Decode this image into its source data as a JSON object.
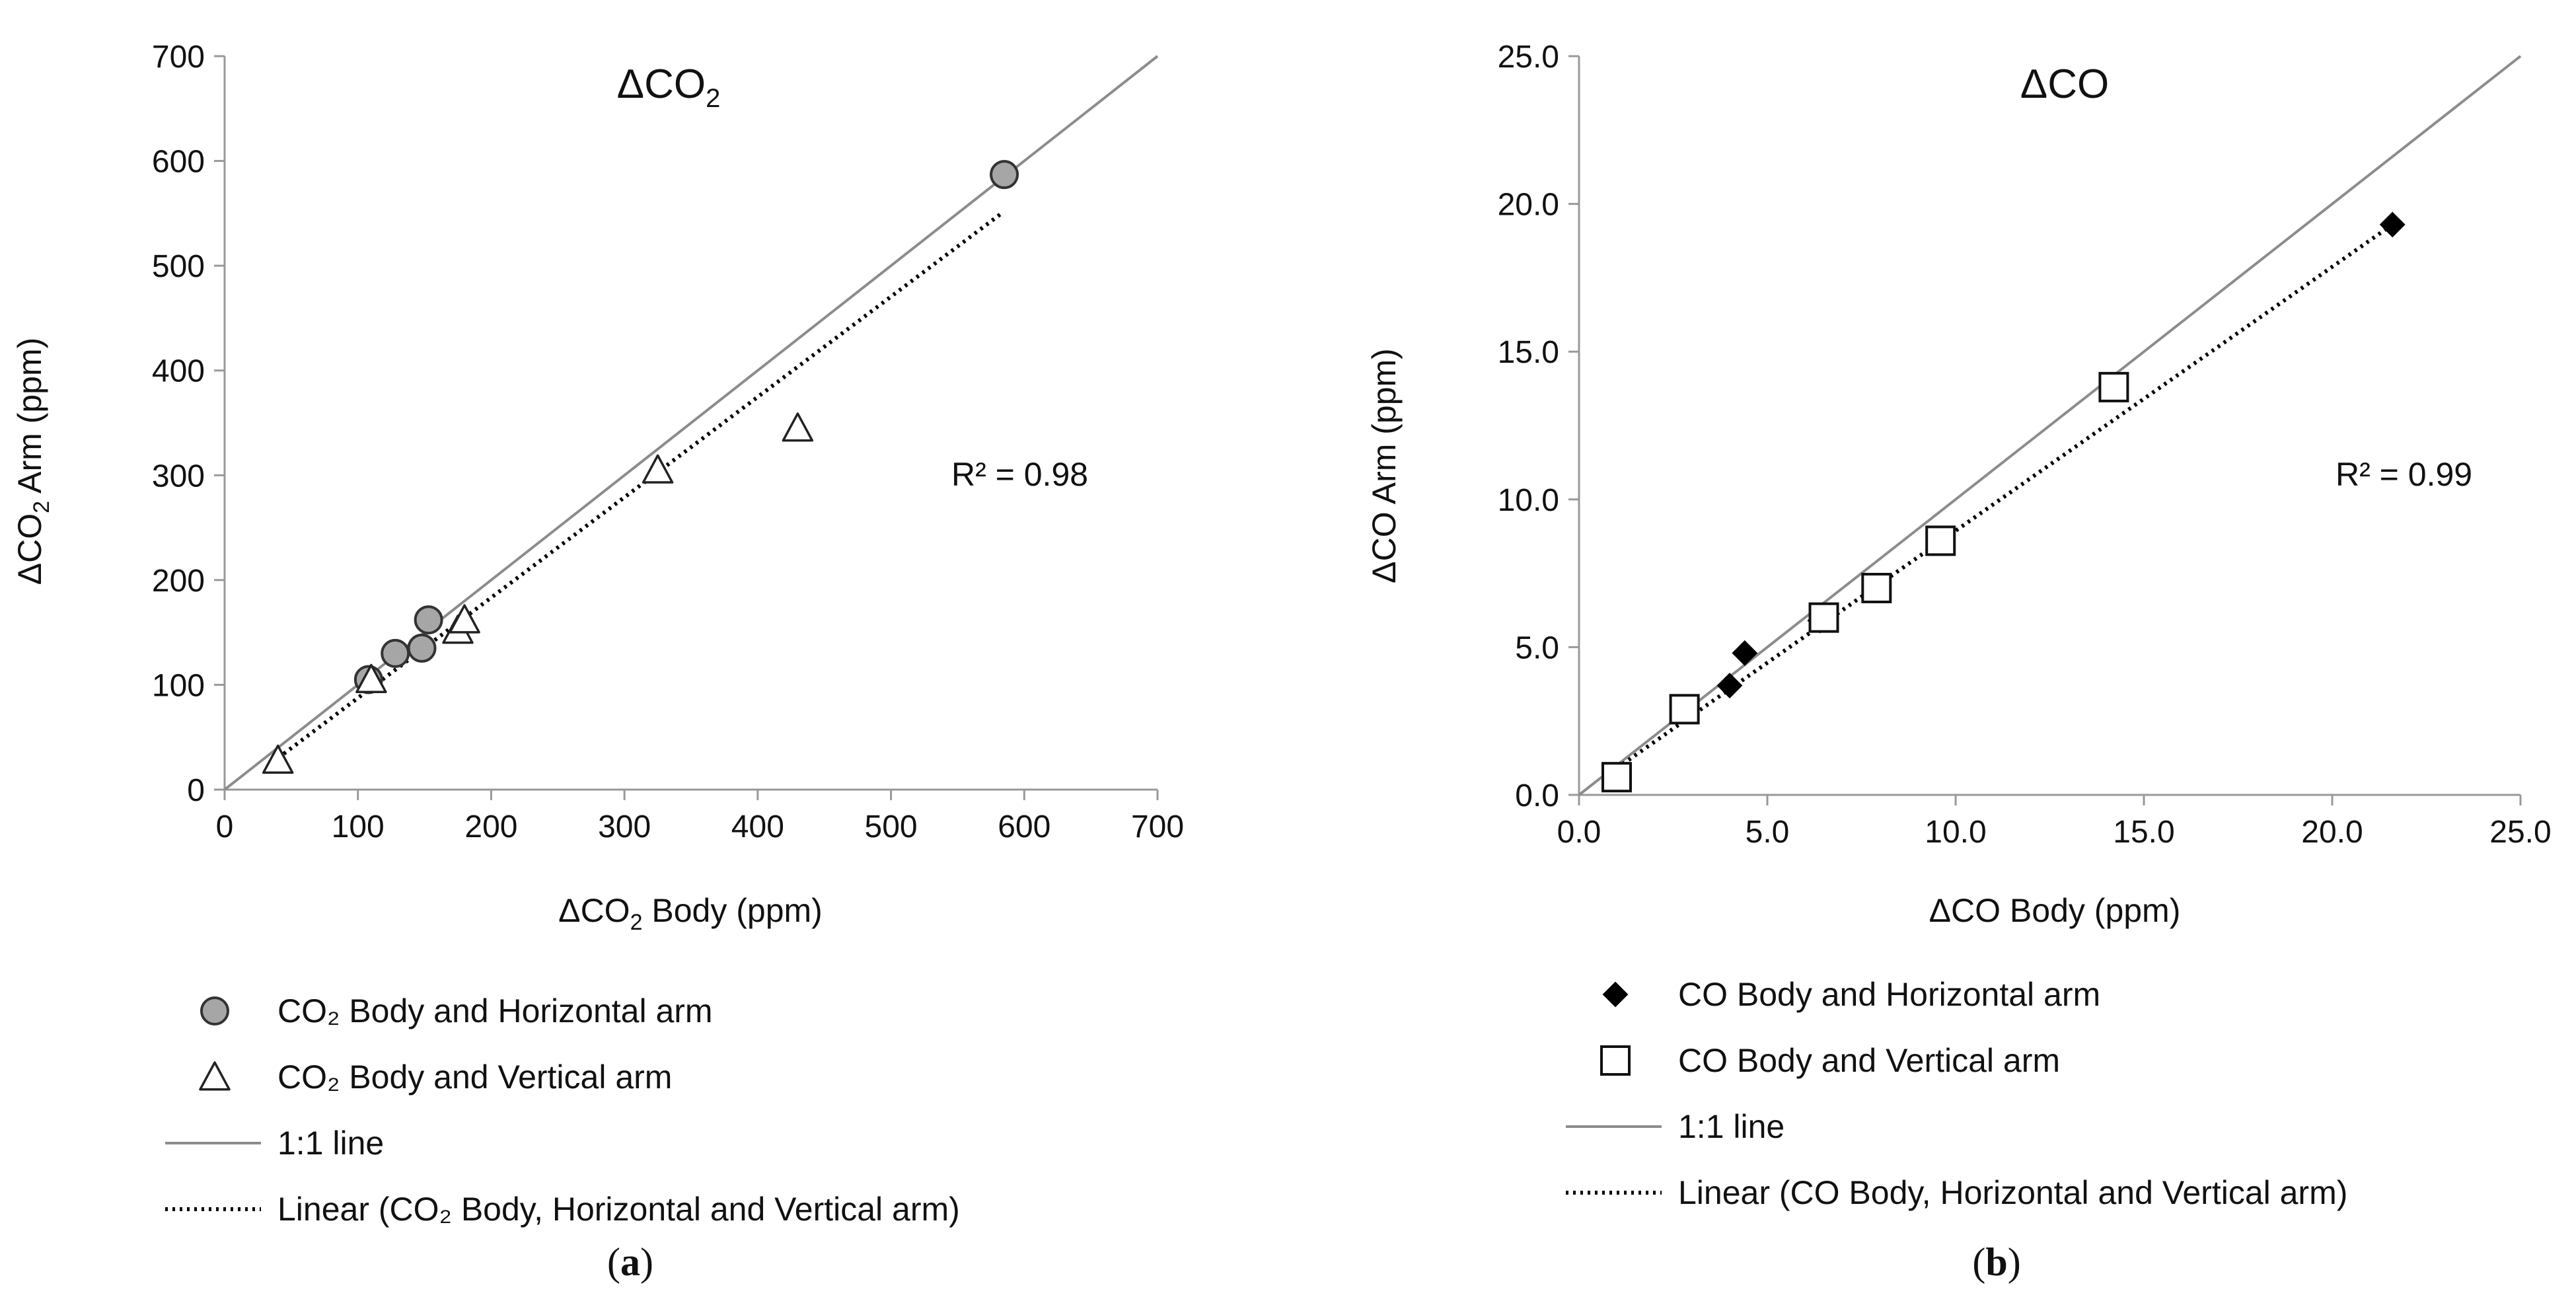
{
  "chart_data": [
    {
      "type": "scatter",
      "panel_label": "a",
      "title": "ΔCO",
      "title_subscript": "2",
      "xlabel": "ΔCO",
      "xlabel_subscript": "2",
      "xlabel_rest": " Body (ppm)",
      "ylabel": "ΔCO",
      "ylabel_subscript": "2",
      "ylabel_rest": " Arm (ppm)",
      "xlim": [
        0,
        700
      ],
      "ylim": [
        0,
        700
      ],
      "xticks": [
        "0",
        "100",
        "200",
        "300",
        "400",
        "500",
        "600",
        "700"
      ],
      "yticks": [
        "0",
        "100",
        "200",
        "300",
        "400",
        "500",
        "600",
        "700"
      ],
      "annotation": "R² = 0.98",
      "series": [
        {
          "name": "CO₂ Body and Horizontal arm",
          "marker": "circle",
          "color": "#a6a6a6",
          "points": [
            [
              108,
              105
            ],
            [
              128,
              130
            ],
            [
              148,
              135
            ],
            [
              153,
              162
            ],
            [
              585,
              587
            ]
          ]
        },
        {
          "name": "CO₂ Body and Vertical arm",
          "marker": "triangle",
          "color": "#ffffff",
          "points": [
            [
              40,
              28
            ],
            [
              110,
              105
            ],
            [
              175,
              152
            ],
            [
              180,
              162
            ],
            [
              325,
              305
            ],
            [
              430,
              345
            ]
          ]
        }
      ],
      "lines": [
        {
          "name": "1:1 line",
          "style": "solid",
          "color": "#8c8c8c",
          "x": [
            0,
            700
          ],
          "y": [
            0,
            700
          ]
        },
        {
          "name": "Linear (CO₂ Body, Horizontal and Vertical arm)",
          "style": "dotted",
          "color": "#000000",
          "x": [
            40,
            583
          ],
          "y": [
            30,
            550
          ]
        }
      ]
    },
    {
      "type": "scatter",
      "panel_label": "b",
      "title": "ΔCO",
      "xlabel": "ΔCO Body (ppm)",
      "ylabel": "ΔCO Arm (ppm)",
      "xlim": [
        0,
        25
      ],
      "ylim": [
        0,
        25
      ],
      "xticks": [
        "0.0",
        "5.0",
        "10.0",
        "15.0",
        "20.0",
        "25.0"
      ],
      "yticks": [
        "0.0",
        "5.0",
        "10.0",
        "15.0",
        "20.0",
        "25.0"
      ],
      "annotation": "R² = 0.99",
      "series": [
        {
          "name": "CO Body and Horizontal arm",
          "marker": "diamond",
          "color": "#000000",
          "points": [
            [
              4.0,
              3.7
            ],
            [
              4.4,
              4.8
            ],
            [
              6.4,
              5.9
            ],
            [
              21.6,
              19.3
            ]
          ]
        },
        {
          "name": "CO Body and Vertical arm",
          "marker": "square",
          "color": "#ffffff",
          "points": [
            [
              1.0,
              0.6
            ],
            [
              2.8,
              2.9
            ],
            [
              6.5,
              6.0
            ],
            [
              7.9,
              7.0
            ],
            [
              9.6,
              8.6
            ],
            [
              14.2,
              13.8
            ]
          ]
        }
      ],
      "lines": [
        {
          "name": "1:1 line",
          "style": "solid",
          "color": "#8c8c8c",
          "x": [
            0,
            25
          ],
          "y": [
            0,
            25
          ]
        },
        {
          "name": "Linear (CO Body, Horizontal and Vertical arm)",
          "style": "dotted",
          "color": "#000000",
          "x": [
            1.0,
            21.6
          ],
          "y": [
            0.9,
            19.3
          ]
        }
      ]
    }
  ]
}
